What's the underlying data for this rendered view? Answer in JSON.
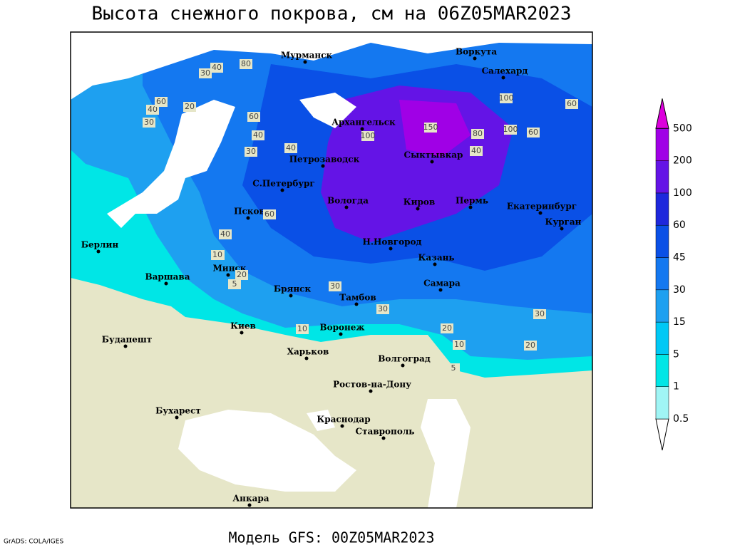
{
  "header": {
    "title": "Высота снежного покрова, см на 06Z05MAR2023"
  },
  "footer": {
    "model": "Модель GFS: 00Z05MAR2023",
    "credit": "GrADS: COLA/IGES"
  },
  "colorbar": {
    "levels": [
      0.5,
      1,
      5,
      15,
      30,
      45,
      60,
      100,
      200,
      500
    ],
    "colors": [
      "#ffffff",
      "#a0f5f5",
      "#00e6e6",
      "#00c8f5",
      "#1ea0f0",
      "#1478f0",
      "#0a50e6",
      "#1e28dc",
      "#6414e6",
      "#a000e6",
      "#dc00dc"
    ]
  },
  "cities": [
    "Мурманск",
    "Воркута",
    "Салехард",
    "Архангельск",
    "Сыктывкар",
    "Петрозаводск",
    "С.Петербург",
    "Вологда",
    "Киров",
    "Пермь",
    "Екатеринбург",
    "Курган",
    "Псков",
    "Н.Новгород",
    "Казань",
    "Берлин",
    "Варшава",
    "Минск",
    "Брянск",
    "Тамбов",
    "Самара",
    "Киев",
    "Воронеж",
    "Будапешт",
    "Харьков",
    "Волгоград",
    "Ростов-на-Дону",
    "Бухарест",
    "Краснодар",
    "Ставрополь",
    "Анкара"
  ],
  "contour_labels": [
    30,
    40,
    80,
    20,
    40,
    60,
    30,
    60,
    40,
    100,
    150,
    80,
    100,
    60,
    40,
    100,
    60,
    30,
    40,
    20,
    10,
    30,
    30,
    20,
    10,
    20,
    30,
    5,
    10,
    20,
    5,
    40,
    60
  ]
}
